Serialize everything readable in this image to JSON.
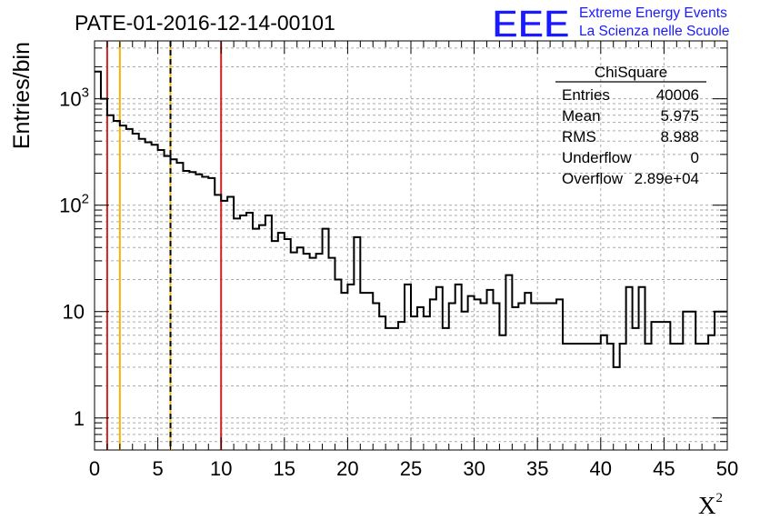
{
  "chart_data": {
    "type": "histogram",
    "title": "PATE-01-2016-12-14-00101",
    "ylabel": "Entries/bin",
    "xlabel": "X",
    "xlabel_superscript": "2",
    "xlim": [
      0,
      50
    ],
    "ylim": [
      0.5,
      3500
    ],
    "yscale": "log",
    "grid": true,
    "bin_width": 0.5,
    "x_ticks": [
      0,
      5,
      10,
      15,
      20,
      25,
      30,
      35,
      40,
      45,
      50
    ],
    "x_tick_labels": [
      "0",
      "5",
      "10",
      "15",
      "20",
      "25",
      "30",
      "35",
      "40",
      "45",
      "50"
    ],
    "y_ticks": [
      1,
      10,
      100,
      1000
    ],
    "y_tick_labels": [
      {
        "base": "1",
        "exp": ""
      },
      {
        "base": "10",
        "exp": ""
      },
      {
        "base": "10",
        "exp": "2"
      },
      {
        "base": "10",
        "exp": "3"
      }
    ],
    "bin_contents": [
      1800,
      1000,
      700,
      620,
      560,
      520,
      470,
      420,
      390,
      370,
      330,
      290,
      270,
      250,
      210,
      205,
      195,
      185,
      180,
      125,
      110,
      120,
      75,
      80,
      85,
      60,
      65,
      80,
      46,
      55,
      48,
      36,
      40,
      35,
      32,
      35,
      60,
      32,
      20,
      15,
      18,
      50,
      15,
      15,
      12,
      9,
      7,
      7,
      8,
      18,
      9,
      11,
      9,
      13,
      17,
      7,
      12,
      18,
      10,
      14,
      13,
      12,
      16,
      12,
      6,
      22,
      11,
      12,
      15,
      12,
      12,
      12,
      12,
      13,
      5,
      5,
      5,
      5,
      5,
      5,
      6,
      5,
      3,
      5,
      17,
      7,
      17,
      5,
      8,
      8,
      8,
      5,
      5,
      10,
      10,
      5,
      5,
      6,
      10,
      10
    ],
    "vertical_lines": [
      {
        "x": 1,
        "color": "#d42020",
        "style": "solid"
      },
      {
        "x": 2,
        "color": "#f5b400",
        "style": "solid"
      },
      {
        "x": 6,
        "color": "#f5b400",
        "style": "solid"
      },
      {
        "x": 6,
        "color": "#000000",
        "style": "dashed"
      },
      {
        "x": 10,
        "color": "#d42020",
        "style": "solid"
      }
    ],
    "stats_box": {
      "title": "ChiSquare",
      "rows": [
        {
          "label": "Entries",
          "value": "40006"
        },
        {
          "label": "Mean",
          "value": "5.975"
        },
        {
          "label": "RMS",
          "value": "8.988"
        },
        {
          "label": "Underflow",
          "value": "0"
        },
        {
          "label": "Overflow",
          "value": "2.89e+04"
        }
      ]
    }
  },
  "logo": {
    "mark": "EEE",
    "line1": "Extreme Energy Events",
    "line2": "La Scienza nelle Scuole",
    "color": "#1a1aff"
  }
}
